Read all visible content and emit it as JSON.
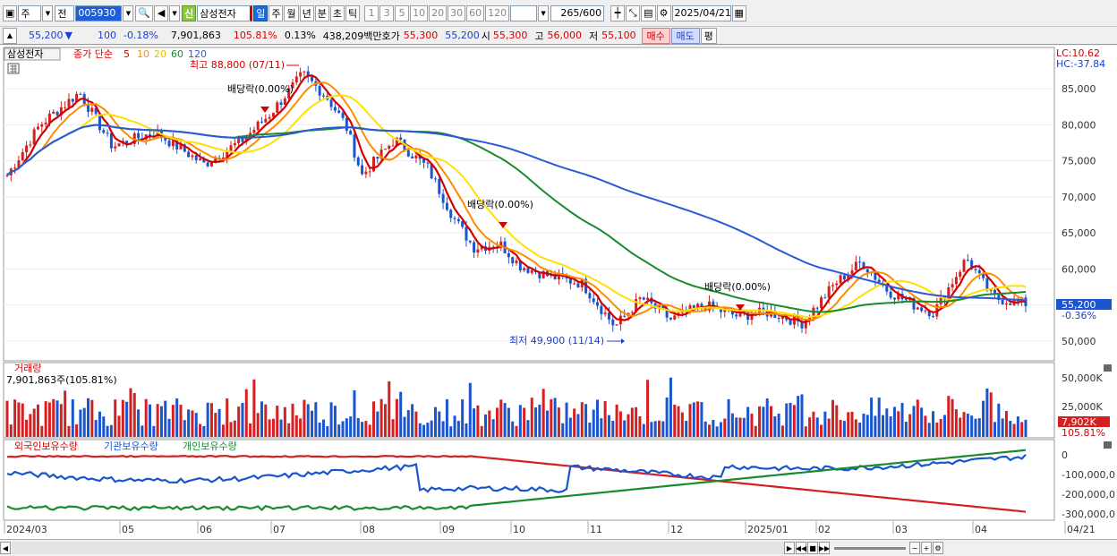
{
  "toolbar": {
    "market": "주",
    "mode": "전",
    "code": "005930",
    "stock_name": "삼성전자",
    "sin": "신",
    "periods": [
      "일",
      "주",
      "월",
      "년",
      "분",
      "초",
      "틱"
    ],
    "numbers": [
      "1",
      "3",
      "5",
      "10",
      "20",
      "30",
      "60",
      "120"
    ],
    "count": "265",
    "count_max": "/600",
    "date": "2025/04/21"
  },
  "quote": {
    "price": "55,200",
    "arrow": "▼",
    "change": "100",
    "change_pct": "-0.18%",
    "volume": "7,901,863",
    "volume_ratio": "105.81%",
    "turnover": "0.13%",
    "amount": "438,209백만",
    "hoga_label": "호가",
    "hoga": "55,300",
    "hoga2": "55,200",
    "open_label": "시",
    "open": "55,300",
    "high_label": "고",
    "high": "56,000",
    "low_label": "저",
    "low": "55,100",
    "buy": "매수",
    "sell": "매도",
    "eval": "평"
  },
  "price_panel": {
    "name": "삼성전자",
    "ma_label": "종가 단순",
    "ma": [
      "5",
      "10",
      "20",
      "60",
      "120"
    ],
    "high_note": "최고 88,800 (07/11)",
    "low_note": "최저 49,900 (11/14)",
    "div1": "배당락(0.00%)",
    "div2": "배당락(0.00%)",
    "div3": "배당락(0.00%)",
    "lc": "LC:10.62",
    "hc": "HC:-37.84",
    "cur_price": "55,200",
    "cur_pct": "-0.36%",
    "y_ticks": [
      "85,000",
      "80,000",
      "75,000",
      "70,000",
      "65,000",
      "60,000",
      "55,000",
      "50,000"
    ]
  },
  "volume_panel": {
    "title": "거래량",
    "value": "7,901,863주(105.81%)",
    "cur": "7,902K",
    "cur_pct": "105.81%",
    "y_ticks": [
      "50,000K",
      "25,000K"
    ]
  },
  "holding_panel": {
    "s1": "외국인보유수량",
    "s2": "기관보유수량",
    "s3": "개인보유수량",
    "y_ticks": [
      "0",
      "-100,000,0",
      "-200,000,0",
      "-300,000,0"
    ]
  },
  "x_axis": [
    "2024/03",
    "05",
    "06",
    "07",
    "08",
    "09",
    "10",
    "11",
    "12",
    "2025/01",
    "02",
    "03",
    "04",
    "04/21"
  ],
  "colors": {
    "up": "#d42020",
    "down": "#1a55d0",
    "ma5": "#d40000",
    "ma10": "#ff8c00",
    "ma20": "#ffe000",
    "ma60": "#1a8a30",
    "ma120": "#2a5ad8"
  }
}
